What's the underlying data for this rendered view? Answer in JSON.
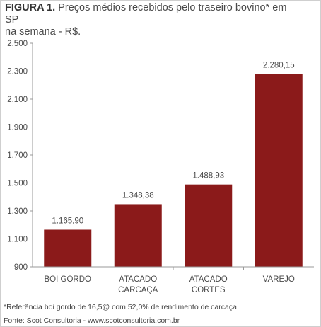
{
  "title": {
    "figure_label": "FIGURA 1.",
    "line1": "Preços médios recebidos pelo traseiro bovino* em SP",
    "line2": "na semana - R$."
  },
  "footnote": "*Referência boi gordo de 16,5@ com 52,0% de rendimento de carcaça",
  "source": "Fonte: Scot Consultoria - www.scotconsultoria.com.br",
  "chart_data": {
    "type": "bar",
    "title": "Preços médios recebidos pelo traseiro bovino* em SP na semana - R$.",
    "categories": [
      [
        "BOI GORDO"
      ],
      [
        "ATACADO",
        "CARCAÇA"
      ],
      [
        "ATACADO",
        "CORTES"
      ],
      [
        "VAREJO"
      ]
    ],
    "values": [
      1165.9,
      1348.38,
      1488.93,
      2280.15
    ],
    "value_labels": [
      "1.165,90",
      "1.348,38",
      "1.488,93",
      "2.280,15"
    ],
    "ylim": [
      900,
      2500
    ],
    "yticks": [
      900,
      1100,
      1300,
      1500,
      1700,
      1900,
      2100,
      2300,
      2500
    ],
    "ytick_labels": [
      "900",
      "1.100",
      "1.300",
      "1.500",
      "1.700",
      "1.900",
      "2.100",
      "2.300",
      "2.500"
    ],
    "bar_color": "#8b1a1a",
    "grid": false
  }
}
